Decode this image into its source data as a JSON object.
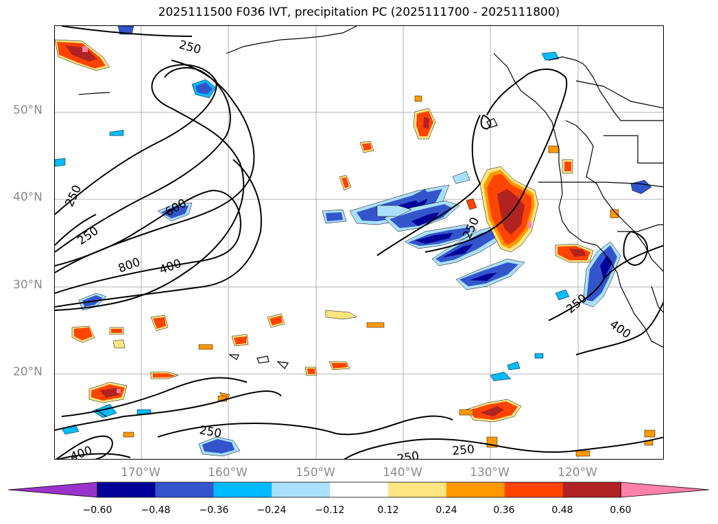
{
  "title": "2025111500 F036 IVT, precipitation PC (2025111700 - 2025111800)",
  "latitude_labels": [
    "50°N",
    "40°N",
    "30°N",
    "20°N"
  ],
  "longitude_labels": [
    "170°W",
    "160°W",
    "150°W",
    "140°W",
    "130°W",
    "120°W"
  ],
  "contour_labels": [
    "250",
    "250",
    "250",
    "600",
    "800",
    "400",
    "250",
    "250",
    "400",
    "250",
    "250",
    "400",
    "250"
  ],
  "colorbar": {
    "ticks": [
      "−0.60",
      "−0.48",
      "−0.36",
      "−0.24",
      "−0.12",
      "0.12",
      "0.24",
      "0.36",
      "0.48",
      "0.60"
    ],
    "colors": [
      "#9933cc",
      "#000099",
      "#3355cc",
      "#00bbff",
      "#aae0ff",
      "#ffffff",
      "#ffe680",
      "#ff9900",
      "#ff4400",
      "#b22222",
      "#ff80aa"
    ]
  },
  "colors": {
    "contour": "#000000",
    "coastline": "#000000",
    "grid": "#b0b0b0",
    "axis_label": "#8a8a8a"
  }
}
